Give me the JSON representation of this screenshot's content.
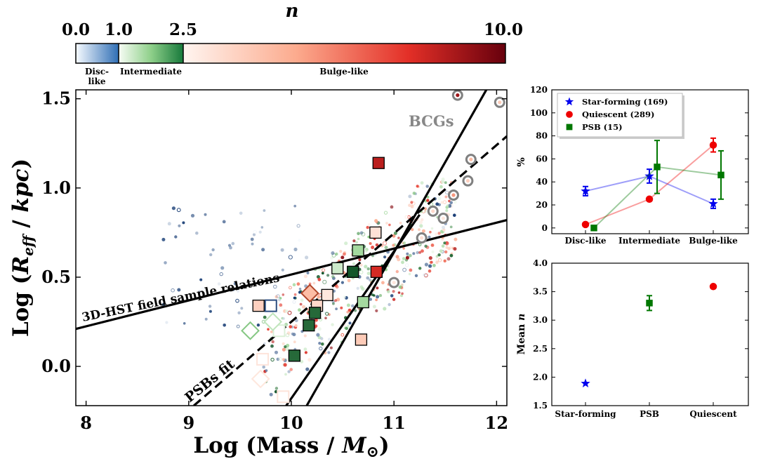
{
  "colorbar": {
    "title": "n",
    "tick_labels": [
      "0.0",
      "1.0",
      "2.5",
      "10.0"
    ],
    "ticks": [
      0.0,
      1.0,
      2.5,
      10.0
    ],
    "categories": [
      {
        "label": "Disc-",
        "label2": "like",
        "from": 0.0,
        "to": 1.0
      },
      {
        "label": "Intermediate",
        "from": 1.0,
        "to": 2.5
      },
      {
        "label": "Bulge-like",
        "from": 2.5,
        "to": 10.0
      }
    ]
  },
  "chart_data": [
    {
      "type": "scatter",
      "xlabel": "Log (Mass / M⊙)",
      "ylabel": "Log (Reff / kpc)",
      "xlim": [
        7.9,
        12.1
      ],
      "ylim": [
        -0.22,
        1.55
      ],
      "xticks": [
        8,
        9,
        10,
        11,
        12
      ],
      "yticks": [
        0.0,
        0.5,
        1.0,
        1.5
      ],
      "xtick_labels": [
        "8",
        "9",
        "10",
        "11",
        "12"
      ],
      "ytick_labels": [
        "0.0",
        "0.5",
        "1.0",
        "1.5"
      ],
      "lines": [
        {
          "label": "3D-HST field sample relations",
          "style": "solid",
          "points": [
            [
              7.9,
              0.21
            ],
            [
              12.1,
              0.82
            ]
          ]
        },
        {
          "label": "BCGs",
          "style": "solid",
          "points": [
            [
              10.15,
              -0.22
            ],
            [
              11.9,
              1.55
            ]
          ]
        },
        {
          "label": "",
          "style": "solid",
          "points": [
            [
              9.95,
              -0.22
            ],
            [
              11.25,
              0.85
            ]
          ]
        },
        {
          "label": "PSBs fit",
          "style": "dashed",
          "points": [
            [
              9.05,
              -0.22
            ],
            [
              12.1,
              1.29
            ]
          ]
        }
      ],
      "annotations": [
        "3D-HST field sample relations",
        "BCGs",
        "PSBs fit"
      ],
      "psb_squares": [
        {
          "x": 10.85,
          "y": 1.14,
          "n": 8.5
        },
        {
          "x": 10.82,
          "y": 0.75,
          "n": 3.2
        },
        {
          "x": 10.65,
          "y": 0.65,
          "n": 1.6
        },
        {
          "x": 10.45,
          "y": 0.55,
          "n": 1.3
        },
        {
          "x": 10.6,
          "y": 0.53,
          "n": 2.4
        },
        {
          "x": 10.83,
          "y": 0.53,
          "n": 8.0
        },
        {
          "x": 10.35,
          "y": 0.4,
          "n": 3.0
        },
        {
          "x": 10.25,
          "y": 0.34,
          "n": 3.5
        },
        {
          "x": 10.23,
          "y": 0.3,
          "n": 2.3
        },
        {
          "x": 10.7,
          "y": 0.36,
          "n": 1.6
        },
        {
          "x": 9.8,
          "y": 0.34,
          "n": 0.85
        },
        {
          "x": 9.68,
          "y": 0.34,
          "n": 3.8
        },
        {
          "x": 9.88,
          "y": 0.2,
          "n": 1.2
        },
        {
          "x": 10.17,
          "y": 0.23,
          "n": 2.3
        },
        {
          "x": 10.03,
          "y": 0.06,
          "n": 2.3
        },
        {
          "x": 10.68,
          "y": 0.15,
          "n": 4.0
        },
        {
          "x": 9.72,
          "y": 0.04,
          "n": 3.1
        },
        {
          "x": 9.92,
          "y": -0.17,
          "n": 3.1
        }
      ],
      "psb_diamonds": [
        {
          "x": 10.18,
          "y": 0.41,
          "n": 4.5
        },
        {
          "x": 9.82,
          "y": 0.25,
          "n": 1.4
        },
        {
          "x": 9.6,
          "y": 0.2,
          "n": 1.8
        },
        {
          "x": 9.7,
          "y": -0.07,
          "n": 3.0
        }
      ],
      "bcg_points": [
        {
          "x": 11.62,
          "y": 1.52,
          "n": 9.0
        },
        {
          "x": 12.03,
          "y": 1.48,
          "n": 4.0
        },
        {
          "x": 11.75,
          "y": 1.16,
          "n": 4.5
        },
        {
          "x": 11.72,
          "y": 1.04,
          "n": 3.8
        },
        {
          "x": 11.58,
          "y": 0.96,
          "n": 5.5
        },
        {
          "x": 11.38,
          "y": 0.87,
          "n": 3.5
        },
        {
          "x": 11.48,
          "y": 0.83,
          "n": 3.0
        },
        {
          "x": 11.27,
          "y": 0.72,
          "n": 3.2
        },
        {
          "x": 11.0,
          "y": 0.47,
          "n": 3.0
        }
      ]
    },
    {
      "type": "line",
      "categories": [
        "Disc-like",
        "Intermediate",
        "Bulge-like"
      ],
      "ylabel": "%",
      "ylim": [
        -5,
        120
      ],
      "yticks": [
        0,
        20,
        40,
        60,
        80,
        100,
        120
      ],
      "ytick_labels": [
        "0",
        "20",
        "40",
        "60",
        "80",
        "100",
        "120"
      ],
      "legend_position": "top-left",
      "series": [
        {
          "name": "Star-forming (169)",
          "marker": "star",
          "color": "#0000ee",
          "values": [
            32,
            45,
            21
          ],
          "errors": [
            4,
            6,
            4
          ]
        },
        {
          "name": "Quiescent (289)",
          "marker": "circle",
          "color": "#ee0000",
          "values": [
            3,
            25,
            72
          ],
          "errors": [
            0,
            0,
            6
          ]
        },
        {
          "name": "PSB (15)",
          "marker": "square",
          "color": "#007700",
          "values": [
            0,
            53,
            46
          ],
          "errors": [
            0,
            23,
            21
          ]
        }
      ]
    },
    {
      "type": "scatter",
      "categories": [
        "Star-forming",
        "PSB",
        "Quiescent"
      ],
      "ylabel": "Mean n",
      "ylim": [
        1.5,
        4.0
      ],
      "yticks": [
        1.5,
        2.0,
        2.5,
        3.0,
        3.5,
        4.0
      ],
      "ytick_labels": [
        "1.5",
        "2.0",
        "2.5",
        "3.0",
        "3.5",
        "4.0"
      ],
      "points": [
        {
          "category": "Star-forming",
          "value": 1.89,
          "error": 0.03,
          "marker": "star",
          "color": "#0000ee"
        },
        {
          "category": "PSB",
          "value": 3.3,
          "error": 0.13,
          "marker": "square",
          "color": "#007700"
        },
        {
          "category": "Quiescent",
          "value": 3.59,
          "error": 0.03,
          "marker": "circle",
          "color": "#ee0000"
        }
      ]
    }
  ]
}
